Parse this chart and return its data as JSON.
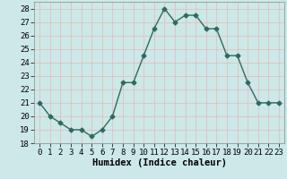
{
  "x": [
    0,
    1,
    2,
    3,
    4,
    5,
    6,
    7,
    8,
    9,
    10,
    11,
    12,
    13,
    14,
    15,
    16,
    17,
    18,
    19,
    20,
    21,
    22,
    23
  ],
  "y": [
    21.0,
    20.0,
    19.5,
    19.0,
    19.0,
    18.5,
    19.0,
    20.0,
    22.5,
    22.5,
    24.5,
    26.5,
    28.0,
    27.0,
    27.5,
    27.5,
    26.5,
    26.5,
    24.5,
    24.5,
    22.5,
    21.0,
    21.0,
    21.0
  ],
  "line_color": "#2e6b5e",
  "marker": "D",
  "marker_size": 2.5,
  "bg_color": "#cce8e8",
  "grid_color_major": "#b0d8d8",
  "grid_color_minor": "#daf0f0",
  "xlabel": "Humidex (Indice chaleur)",
  "xlabel_fontsize": 7.5,
  "xlim": [
    -0.5,
    23.5
  ],
  "ylim": [
    18,
    28.5
  ],
  "yticks": [
    18,
    19,
    20,
    21,
    22,
    23,
    24,
    25,
    26,
    27,
    28
  ],
  "xticks": [
    0,
    1,
    2,
    3,
    4,
    5,
    6,
    7,
    8,
    9,
    10,
    11,
    12,
    13,
    14,
    15,
    16,
    17,
    18,
    19,
    20,
    21,
    22,
    23
  ],
  "tick_fontsize": 6.5,
  "linewidth": 1.0
}
